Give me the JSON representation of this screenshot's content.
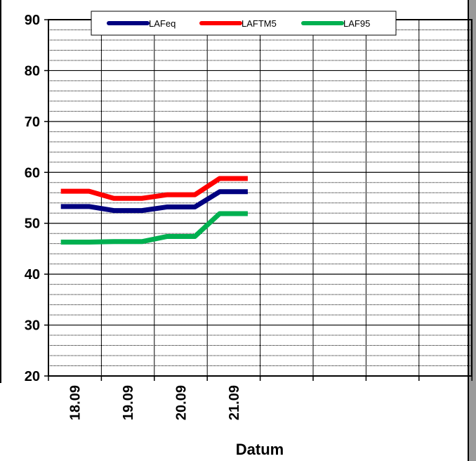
{
  "chart_data": {
    "type": "line",
    "categories": [
      "18.09",
      "19.09",
      "20.09",
      "21.09"
    ],
    "series": [
      {
        "name": "LAFeq",
        "color": "#000080",
        "values": [
          53.3,
          52.5,
          53.2,
          56.2
        ]
      },
      {
        "name": "LAFTM5",
        "color": "#ff0000",
        "values": [
          56.3,
          54.9,
          55.6,
          58.8
        ]
      },
      {
        "name": "LAF95",
        "color": "#00b050",
        "values": [
          46.3,
          46.4,
          47.4,
          51.9
        ]
      }
    ],
    "xlabel": "Datum",
    "ylabel": "",
    "ylim": [
      20,
      90
    ],
    "yticks": [
      20,
      30,
      40,
      50,
      60,
      70,
      80,
      90
    ],
    "grid": true,
    "legend_position": "top"
  }
}
